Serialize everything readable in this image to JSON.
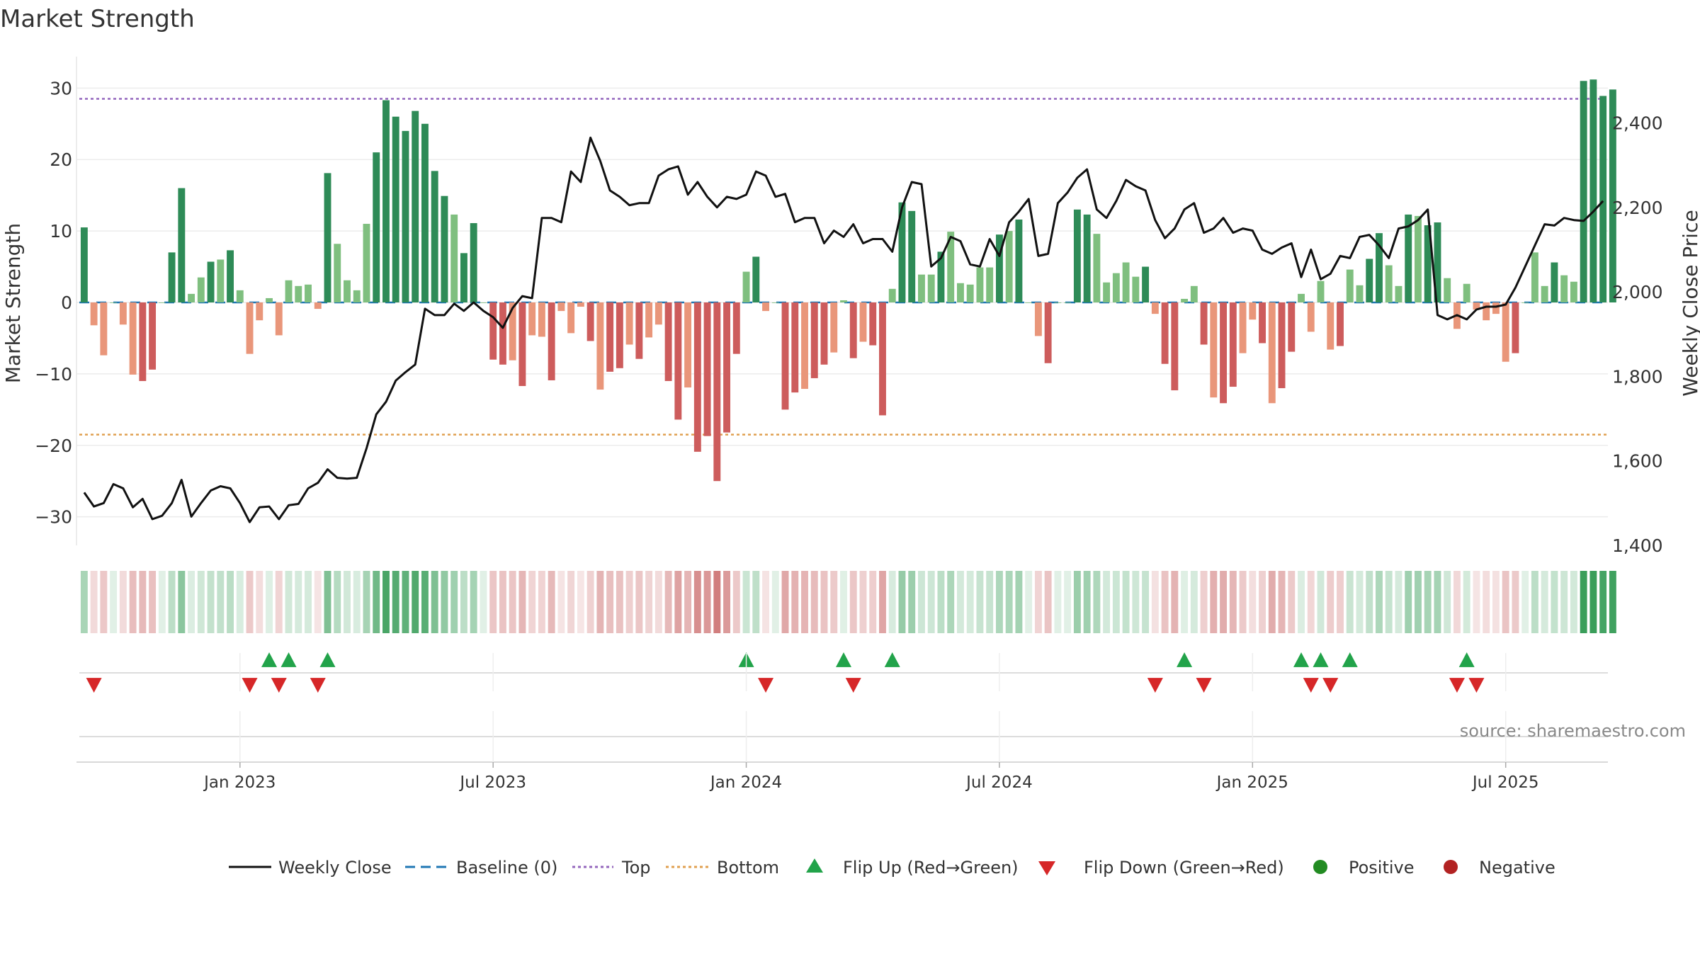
{
  "chart_data": {
    "type": "bar",
    "title": "Market Strength",
    "ylabel": "Market Strength",
    "y2label": "Weekly Close Price",
    "ylim": [
      -34,
      34
    ],
    "y2lim": [
      1400,
      2550
    ],
    "y_ticks": [
      30,
      20,
      10,
      0,
      -10,
      -20,
      -30
    ],
    "y_tick_labels": [
      "30",
      "20",
      "10",
      "0",
      "−10",
      "−20",
      "−30"
    ],
    "y2_ticks": [
      2400,
      2200,
      2000,
      1800,
      1600,
      1400
    ],
    "y2_tick_labels": [
      "2,400",
      "2,200",
      "2,000",
      "1,800",
      "1,600",
      "1,400"
    ],
    "x_tick_labels": [
      "Jan 2023",
      "Jul 2023",
      "Jan 2024",
      "Jul 2024",
      "Jan 2025",
      "Jul 2025"
    ],
    "x_tick_weeks": [
      16,
      42,
      68,
      94,
      120,
      146
    ],
    "week_count": 157,
    "top_line": 28.5,
    "bottom_line": -18.5,
    "strength": [
      10.5,
      -3.2,
      -7.4,
      0,
      -3.1,
      -10.1,
      -11,
      -9.4,
      0,
      7,
      16,
      1.2,
      3.5,
      5.7,
      6,
      7.3,
      1.7,
      -7.2,
      -2.5,
      0.6,
      -4.6,
      3.1,
      2.3,
      2.5,
      -0.9,
      18.1,
      8.2,
      3.1,
      1.7,
      11,
      21,
      28.3,
      26,
      24,
      26.8,
      25,
      18.4,
      14.9,
      12.3,
      6.9,
      11.1,
      0,
      -8,
      -8.7,
      -8.1,
      -11.7,
      -4.6,
      -4.8,
      -10.9,
      -1.2,
      -4.3,
      -0.6,
      -5.4,
      -12.2,
      -9.7,
      -9.2,
      -5.9,
      -7.9,
      -4.9,
      -3.1,
      -11,
      -16.4,
      -11.9,
      -20.9,
      -18.7,
      -25,
      -18.2,
      -7.2,
      4.3,
      6.4,
      -1.2,
      0,
      -15,
      -12.6,
      -12.1,
      -10.6,
      -8.7,
      -7,
      0.3,
      -7.8,
      -5.5,
      -6,
      -15.8,
      1.9,
      14,
      12.8,
      3.9,
      3.9,
      7.1,
      9.9,
      2.7,
      2.5,
      4.9,
      4.9,
      9.5,
      10,
      11.6,
      0,
      -4.7,
      -8.5,
      0,
      0,
      13,
      12.3,
      9.6,
      2.8,
      4.1,
      5.6,
      3.6,
      5,
      -1.6,
      -8.6,
      -12.3,
      0.5,
      2.3,
      -5.9,
      -13.3,
      -14.1,
      -11.8,
      -7.1,
      -2.4,
      -5.7,
      -14.1,
      -12,
      -6.9,
      1.2,
      -4.1,
      3,
      -6.6,
      -6.1,
      4.6,
      2.4,
      6.1,
      9.7,
      5.2,
      2.3,
      12.3,
      12.1,
      10.8,
      11.2,
      3.4,
      -3.7,
      2.6,
      -1,
      -2.5,
      -1.6,
      -8.3,
      -7.1,
      0,
      7,
      2.3,
      5.6,
      3.8,
      2.9,
      31,
      31.2,
      28.9,
      29.8
    ],
    "price": [
      1525,
      1492,
      1500,
      1545,
      1535,
      1490,
      1510,
      1462,
      1470,
      1500,
      1555,
      1468,
      1500,
      1530,
      1540,
      1535,
      1500,
      1455,
      1490,
      1492,
      1462,
      1495,
      1498,
      1535,
      1548,
      1580,
      1560,
      1558,
      1560,
      1630,
      1710,
      1740,
      1790,
      1810,
      1828,
      1960,
      1945,
      1945,
      1972,
      1955,
      1975,
      1955,
      1940,
      1915,
      1962,
      1990,
      1985,
      2175,
      2175,
      2165,
      2285,
      2260,
      2365,
      2310,
      2240,
      2225,
      2205,
      2210,
      2210,
      2275,
      2290,
      2297,
      2230,
      2260,
      2225,
      2200,
      2225,
      2220,
      2230,
      2285,
      2275,
      2225,
      2232,
      2165,
      2175,
      2175,
      2115,
      2145,
      2130,
      2160,
      2115,
      2125,
      2125,
      2095,
      2200,
      2260,
      2255,
      2060,
      2080,
      2130,
      2120,
      2065,
      2060,
      2125,
      2085,
      2165,
      2190,
      2220,
      2085,
      2090,
      2210,
      2235,
      2270,
      2290,
      2195,
      2175,
      2215,
      2265,
      2250,
      2240,
      2170,
      2127,
      2150,
      2195,
      2210,
      2140,
      2150,
      2175,
      2140,
      2150,
      2145,
      2100,
      2090,
      2105,
      2115,
      2035,
      2100,
      2030,
      2043,
      2085,
      2080,
      2130,
      2135,
      2110,
      2080,
      2150,
      2155,
      2170,
      2195,
      1945,
      1935,
      1945,
      1935,
      1958,
      1965,
      1965,
      1970,
      2010,
      2060,
      2110,
      2160,
      2157,
      2175,
      2170,
      2168,
      2190,
      2215
    ]
  },
  "legend": {
    "weekly_close": "Weekly Close",
    "baseline": "Baseline (0)",
    "top": "Top",
    "bottom": "Bottom",
    "flip_up": "Flip Up (Red→Green)",
    "flip_down": "Flip Down (Green→Red)",
    "positive": "Positive",
    "negative": "Negative"
  },
  "source_text": "source: sharemaestro.com",
  "colors": {
    "price_line": "#111111",
    "baseline": "#1f77b4",
    "top_line": "#9467bd",
    "bottom_line": "#e0a050",
    "pos_strong": "#2e8b57",
    "pos_weak": "#7fbf7f",
    "neg_strong": "#cd5c5c",
    "neg_weak": "#e9967a",
    "flip_up": "#22a34a",
    "flip_down": "#d62728",
    "positive_dot": "#228b22",
    "negative_dot": "#b22222"
  }
}
